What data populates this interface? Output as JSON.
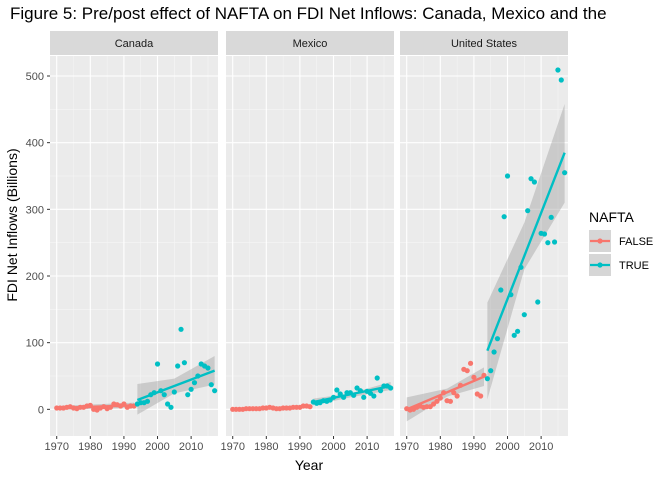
{
  "chart_data": {
    "type": "scatter",
    "title": "Figure 5: Pre/post effect of NAFTA on FDI Net Inflows: Canada, Mexico and the",
    "xlabel": "Year",
    "ylabel": "FDI Net Inflows (Billions)",
    "xlim": [
      1968,
      2018
    ],
    "ylim": [
      -40,
      530
    ],
    "x_ticks": [
      1970,
      1980,
      1990,
      2000,
      2010
    ],
    "y_ticks": [
      0,
      100,
      200,
      300,
      400,
      500
    ],
    "grid": true,
    "legend": {
      "title": "NAFTA",
      "placement": "right",
      "entries": [
        {
          "label": "FALSE",
          "color": "#F8766D"
        },
        {
          "label": "TRUE",
          "color": "#00BFC4"
        }
      ]
    },
    "colors": {
      "FALSE": "#F8766D",
      "TRUE": "#00BFC4",
      "panel_bg": "#EBEBEB",
      "strip_bg": "#D9D9D9"
    },
    "panels": [
      {
        "name": "Canada",
        "points_false": [
          [
            1970,
            2
          ],
          [
            1971,
            2
          ],
          [
            1972,
            2
          ],
          [
            1973,
            3
          ],
          [
            1974,
            4
          ],
          [
            1975,
            2
          ],
          [
            1976,
            1
          ],
          [
            1977,
            3
          ],
          [
            1978,
            3
          ],
          [
            1979,
            5
          ],
          [
            1980,
            6
          ],
          [
            1981,
            0
          ],
          [
            1982,
            -1
          ],
          [
            1983,
            2
          ],
          [
            1984,
            4
          ],
          [
            1985,
            1
          ],
          [
            1986,
            3
          ],
          [
            1987,
            8
          ],
          [
            1988,
            7
          ],
          [
            1989,
            5
          ],
          [
            1990,
            8
          ],
          [
            1991,
            3
          ],
          [
            1992,
            5
          ],
          [
            1993,
            5
          ]
        ],
        "points_true": [
          [
            1994,
            8
          ],
          [
            1995,
            10
          ],
          [
            1996,
            10
          ],
          [
            1997,
            12
          ],
          [
            1998,
            22
          ],
          [
            1999,
            25
          ],
          [
            2000,
            68
          ],
          [
            2001,
            28
          ],
          [
            2002,
            22
          ],
          [
            2003,
            8
          ],
          [
            2004,
            3
          ],
          [
            2005,
            26
          ],
          [
            2006,
            65
          ],
          [
            2007,
            120
          ],
          [
            2008,
            70
          ],
          [
            2009,
            22
          ],
          [
            2010,
            30
          ],
          [
            2011,
            40
          ],
          [
            2012,
            50
          ],
          [
            2013,
            68
          ],
          [
            2014,
            65
          ],
          [
            2015,
            62
          ],
          [
            2016,
            37
          ],
          [
            2017,
            28
          ]
        ],
        "fit_false": [
          [
            1970,
            2
          ],
          [
            1993,
            6
          ]
        ],
        "fit_true": [
          [
            1994,
            14
          ],
          [
            2017,
            58
          ]
        ],
        "ci_false": [
          [
            1970,
            -1,
            5
          ],
          [
            1993,
            2,
            10
          ]
        ],
        "ci_true": [
          [
            1994,
            -8,
            38
          ],
          [
            2005,
            24,
            46
          ],
          [
            2017,
            37,
            80
          ]
        ]
      },
      {
        "name": "Mexico",
        "points_false": [
          [
            1970,
            0
          ],
          [
            1971,
            0
          ],
          [
            1972,
            0
          ],
          [
            1973,
            0
          ],
          [
            1974,
            1
          ],
          [
            1975,
            1
          ],
          [
            1976,
            1
          ],
          [
            1977,
            1
          ],
          [
            1978,
            1
          ],
          [
            1979,
            2
          ],
          [
            1980,
            2
          ],
          [
            1981,
            3
          ],
          [
            1982,
            2
          ],
          [
            1983,
            1
          ],
          [
            1984,
            1
          ],
          [
            1985,
            2
          ],
          [
            1986,
            2
          ],
          [
            1987,
            2
          ],
          [
            1988,
            3
          ],
          [
            1989,
            3
          ],
          [
            1990,
            3
          ],
          [
            1991,
            5
          ],
          [
            1992,
            5
          ],
          [
            1993,
            4
          ]
        ],
        "points_true": [
          [
            1994,
            11
          ],
          [
            1995,
            9
          ],
          [
            1996,
            10
          ],
          [
            1997,
            13
          ],
          [
            1998,
            12
          ],
          [
            1999,
            14
          ],
          [
            2000,
            18
          ],
          [
            2001,
            29
          ],
          [
            2002,
            23
          ],
          [
            2003,
            18
          ],
          [
            2004,
            25
          ],
          [
            2005,
            25
          ],
          [
            2006,
            21
          ],
          [
            2007,
            32
          ],
          [
            2008,
            28
          ],
          [
            2009,
            18
          ],
          [
            2010,
            27
          ],
          [
            2011,
            24
          ],
          [
            2012,
            20
          ],
          [
            2013,
            47
          ],
          [
            2014,
            28
          ],
          [
            2015,
            35
          ],
          [
            2016,
            35
          ],
          [
            2017,
            32
          ]
        ],
        "fit_false": [
          [
            1970,
            0
          ],
          [
            1993,
            4
          ]
        ],
        "fit_true": [
          [
            1994,
            11
          ],
          [
            2017,
            35
          ]
        ],
        "ci_false": [
          [
            1970,
            -1,
            1
          ],
          [
            1993,
            3,
            5
          ]
        ],
        "ci_true": [
          [
            1994,
            6,
            16
          ],
          [
            2005,
            18,
            24
          ],
          [
            2017,
            29,
            41
          ]
        ]
      },
      {
        "name": "United States",
        "points_false": [
          [
            1970,
            1
          ],
          [
            1971,
            -1
          ],
          [
            1972,
            0
          ],
          [
            1973,
            3
          ],
          [
            1974,
            5
          ],
          [
            1975,
            3
          ],
          [
            1976,
            4
          ],
          [
            1977,
            4
          ],
          [
            1978,
            8
          ],
          [
            1979,
            12
          ],
          [
            1980,
            17
          ],
          [
            1981,
            25
          ],
          [
            1982,
            13
          ],
          [
            1983,
            12
          ],
          [
            1984,
            25
          ],
          [
            1985,
            20
          ],
          [
            1986,
            36
          ],
          [
            1987,
            60
          ],
          [
            1988,
            58
          ],
          [
            1989,
            69
          ],
          [
            1990,
            48
          ],
          [
            1991,
            23
          ],
          [
            1992,
            20
          ],
          [
            1993,
            51
          ]
        ],
        "points_true": [
          [
            1994,
            46
          ],
          [
            1995,
            58
          ],
          [
            1996,
            86
          ],
          [
            1997,
            106
          ],
          [
            1998,
            179
          ],
          [
            1999,
            289
          ],
          [
            2000,
            350
          ],
          [
            2001,
            172
          ],
          [
            2002,
            111
          ],
          [
            2003,
            117
          ],
          [
            2004,
            213
          ],
          [
            2005,
            142
          ],
          [
            2006,
            298
          ],
          [
            2007,
            346
          ],
          [
            2008,
            341
          ],
          [
            2009,
            161
          ],
          [
            2010,
            264
          ],
          [
            2011,
            263
          ],
          [
            2012,
            250
          ],
          [
            2013,
            288
          ],
          [
            2014,
            251
          ],
          [
            2015,
            509
          ],
          [
            2016,
            494
          ],
          [
            2017,
            355
          ]
        ],
        "fit_false": [
          [
            1970,
            0
          ],
          [
            1993,
            49
          ]
        ],
        "fit_true": [
          [
            1994,
            88
          ],
          [
            2017,
            385
          ]
        ],
        "ci_false": [
          [
            1970,
            -18,
            18
          ],
          [
            1982,
            19,
            31
          ],
          [
            1993,
            35,
            63
          ]
        ],
        "ci_true": [
          [
            1994,
            15,
            160
          ],
          [
            2005,
            210,
            280
          ],
          [
            2017,
            310,
            458
          ]
        ]
      }
    ]
  }
}
